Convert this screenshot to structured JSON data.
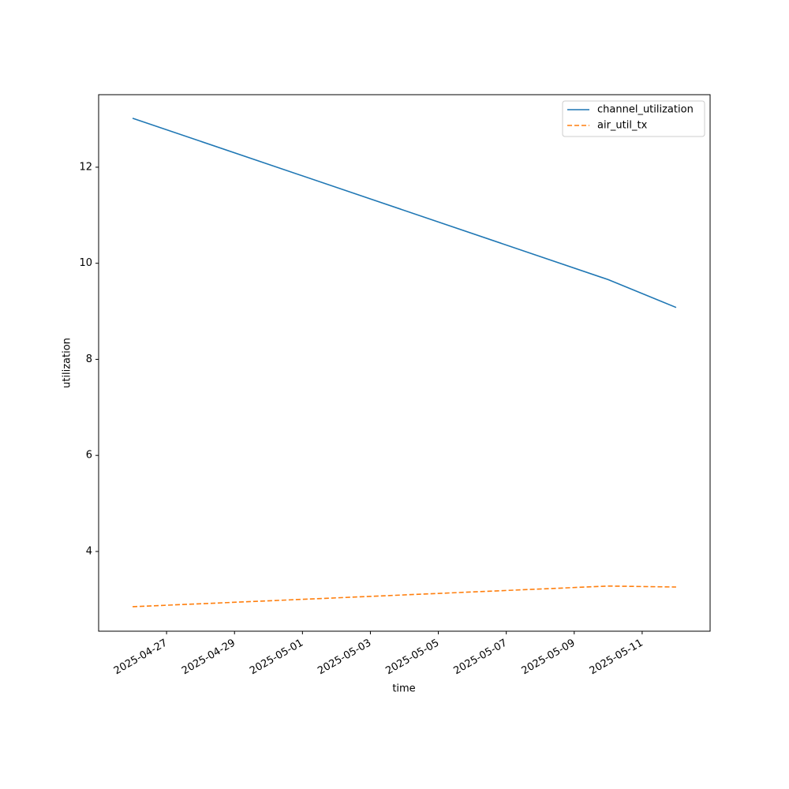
{
  "chart_data": {
    "type": "line",
    "x_label": "time",
    "y_label": "utilization",
    "x": [
      "2025-04-26",
      "2025-05-10",
      "2025-05-12"
    ],
    "series": [
      {
        "name": "channel_utilization",
        "color": "#1f77b4",
        "dash": "solid",
        "values": [
          13.02,
          9.66,
          9.08
        ]
      },
      {
        "name": "air_util_tx",
        "color": "#ff7f0e",
        "dash": "dashed",
        "values": [
          2.85,
          3.28,
          3.26
        ]
      }
    ],
    "xlim": [
      "2025-04-25",
      "2025-05-13"
    ],
    "xticks": [
      "2025-04-27",
      "2025-04-29",
      "2025-05-01",
      "2025-05-03",
      "2025-05-05",
      "2025-05-07",
      "2025-05-09",
      "2025-05-11"
    ],
    "ylim": [
      2.34,
      13.51
    ],
    "yticks": [
      4,
      6,
      8,
      10,
      12
    ],
    "grid": false,
    "legend": "upper right"
  }
}
